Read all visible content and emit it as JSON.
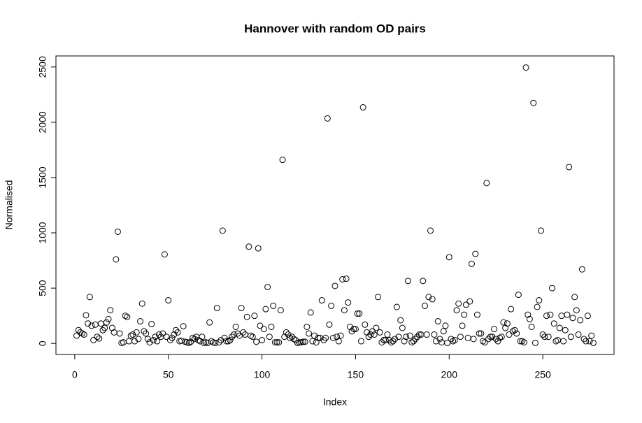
{
  "chart_data": {
    "type": "scatter",
    "title": "Hannover with random OD pairs",
    "x_label": "Index",
    "y_label": "Normalised",
    "x": [
      1,
      2,
      3,
      4,
      5,
      6,
      7,
      8,
      9,
      10,
      11,
      12,
      13,
      14,
      15,
      16,
      17,
      18,
      19,
      20,
      21,
      22,
      23,
      24,
      25,
      26,
      27,
      28,
      29,
      30,
      31,
      32,
      33,
      34,
      35,
      36,
      37,
      38,
      39,
      40,
      41,
      42,
      43,
      44,
      45,
      46,
      47,
      48,
      49,
      50,
      51,
      52,
      53,
      54,
      55,
      56,
      57,
      58,
      59,
      60,
      61,
      62,
      63,
      64,
      65,
      66,
      67,
      68,
      69,
      70,
      71,
      72,
      73,
      74,
      75,
      76,
      77,
      78,
      79,
      80,
      81,
      82,
      83,
      84,
      85,
      86,
      87,
      88,
      89,
      90,
      91,
      92,
      93,
      94,
      95,
      96,
      97,
      98,
      99,
      100,
      101,
      102,
      103,
      104,
      105,
      106,
      107,
      108,
      109,
      110,
      111,
      112,
      113,
      114,
      115,
      116,
      117,
      118,
      119,
      120,
      121,
      122,
      123,
      124,
      125,
      126,
      127,
      128,
      129,
      130,
      131,
      132,
      133,
      134,
      135,
      136,
      137,
      138,
      139,
      140,
      141,
      142,
      143,
      144,
      145,
      146,
      147,
      148,
      149,
      150,
      151,
      152,
      153,
      154,
      155,
      156,
      157,
      158,
      159,
      160,
      161,
      162,
      163,
      164,
      165,
      166,
      167,
      168,
      169,
      170,
      171,
      172,
      173,
      174,
      175,
      176,
      177,
      178,
      179,
      180,
      181,
      182,
      183,
      184,
      185,
      186,
      187,
      188,
      189,
      190,
      191,
      192,
      193,
      194,
      195,
      196,
      197,
      198,
      199,
      200,
      201,
      202,
      203,
      204,
      205,
      206,
      207,
      208,
      209,
      210,
      211,
      212,
      213,
      214,
      215,
      216,
      217,
      218,
      219,
      220,
      221,
      222,
      223,
      224,
      225,
      226,
      227,
      228,
      229,
      230,
      231,
      232,
      233,
      234,
      235,
      236,
      237,
      238,
      239,
      240,
      241,
      242,
      243,
      244,
      245,
      246,
      247,
      248,
      249,
      250,
      251,
      252,
      253,
      254,
      255,
      256,
      257,
      258,
      259,
      260,
      261,
      262,
      263,
      264,
      265,
      266,
      267,
      268,
      269,
      270,
      271,
      272,
      273,
      274,
      275,
      276,
      277
    ],
    "values": [
      70,
      120,
      100,
      90,
      80,
      255,
      180,
      420,
      160,
      30,
      170,
      60,
      45,
      180,
      120,
      140,
      190,
      220,
      300,
      140,
      100,
      760,
      1010,
      90,
      5,
      10,
      250,
      240,
      20,
      70,
      80,
      20,
      100,
      40,
      200,
      360,
      110,
      90,
      40,
      10,
      175,
      30,
      60,
      20,
      80,
      60,
      90,
      805,
      60,
      390,
      30,
      50,
      80,
      120,
      100,
      20,
      25,
      155,
      15,
      10,
      5,
      15,
      50,
      40,
      60,
      30,
      20,
      60,
      5,
      10,
      5,
      190,
      20,
      10,
      5,
      320,
      10,
      30,
      1020,
      50,
      20,
      20,
      30,
      60,
      80,
      150,
      90,
      70,
      320,
      100,
      80,
      240,
      875,
      70,
      60,
      250,
      15,
      860,
      160,
      30,
      130,
      310,
      510,
      60,
      150,
      340,
      10,
      10,
      10,
      300,
      1660,
      60,
      100,
      80,
      50,
      60,
      40,
      30,
      5,
      10,
      10,
      15,
      15,
      150,
      90,
      280,
      20,
      70,
      10,
      50,
      50,
      390,
      30,
      50,
      2035,
      170,
      340,
      50,
      520,
      60,
      20,
      70,
      580,
      300,
      585,
      370,
      150,
      110,
      130,
      130,
      270,
      270,
      20,
      2135,
      170,
      100,
      60,
      80,
      110,
      80,
      140,
      420,
      100,
      10,
      30,
      30,
      80,
      30,
      10,
      20,
      40,
      330,
      60,
      210,
      140,
      20,
      60,
      565,
      70,
      10,
      20,
      40,
      60,
      80,
      80,
      565,
      340,
      80,
      420,
      1020,
      400,
      80,
      20,
      200,
      40,
      10,
      110,
      160,
      5,
      780,
      40,
      20,
      30,
      300,
      360,
      60,
      160,
      260,
      350,
      50,
      380,
      720,
      40,
      810,
      260,
      90,
      90,
      20,
      10,
      1450,
      40,
      60,
      60,
      130,
      40,
      20,
      50,
      60,
      190,
      140,
      180,
      80,
      310,
      110,
      120,
      90,
      440,
      20,
      20,
      10,
      2495,
      260,
      220,
      150,
      2175,
      5,
      330,
      390,
      1020,
      80,
      60,
      250,
      60,
      260,
      500,
      180,
      20,
      30,
      140,
      250,
      20,
      120,
      260,
      1595,
      60,
      230,
      420,
      300,
      80,
      210,
      670,
      40,
      20,
      250,
      20,
      70,
      5
    ],
    "xlim": [
      -10.04,
      288.04
    ],
    "ylim": [
      -100,
      2600
    ],
    "xticks": [
      0,
      50,
      100,
      150,
      200,
      250
    ],
    "yticks": [
      0,
      500,
      1000,
      1500,
      2000,
      2500
    ],
    "color": "#000000"
  }
}
